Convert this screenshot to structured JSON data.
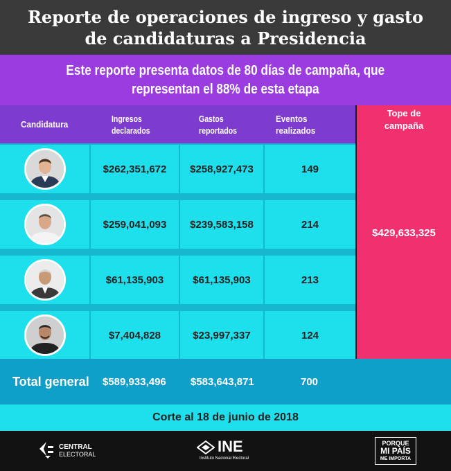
{
  "title": {
    "line1": "Reporte de operaciones de ingreso y gasto",
    "line2": "de candidaturas a Presidencia"
  },
  "subtitle": {
    "line1": "Este reporte presenta datos de 80 días de campaña, que",
    "line2": "representan el 88% de esta etapa"
  },
  "table": {
    "headers": {
      "candidatura": "Candidatura",
      "ingresos_1": "Ingresos",
      "ingresos_2": "declarados",
      "gastos_1": "Gastos",
      "gastos_2": "reportados",
      "eventos": "Eventos realizados",
      "tope_1": "Tope de",
      "tope_2": "campaña"
    },
    "rows": [
      {
        "ingresos": "$262,351,672",
        "gastos": "$258,927,473",
        "eventos": "149"
      },
      {
        "ingresos": "$259,041,093",
        "gastos": "$239,583,158",
        "eventos": "214"
      },
      {
        "ingresos": "$61,135,903",
        "gastos": "$61,135,903",
        "eventos": "213"
      },
      {
        "ingresos": "$7,404,828",
        "gastos": "$23,997,337",
        "eventos": "124"
      }
    ],
    "tope_value": "$429,633,325",
    "total": {
      "label": "Total general",
      "ingresos": "$589,933,496",
      "gastos": "$583,643,871",
      "eventos": "700"
    }
  },
  "cutoff": "Corte al 18 de junio de 2018",
  "footer": {
    "central_1": "CENTRAL",
    "central_2": "ELECTORAL",
    "ine": "INE",
    "ine_sub": "Instituto Nacional Electoral",
    "pais_1": "PORQUE",
    "pais_2": "MI PAÍS",
    "pais_3": "ME IMPORTA"
  },
  "colors": {
    "title_bg": "#3a3a3a",
    "subtitle_bg": "#9b3ce0",
    "header_bg": "#7d3ccf",
    "cell_bg": "#1ee0ec",
    "grid_lines": "#15b8cf",
    "tope_bg": "#f0306f",
    "total_bg": "#109fc9",
    "footer_bg": "#121212"
  }
}
